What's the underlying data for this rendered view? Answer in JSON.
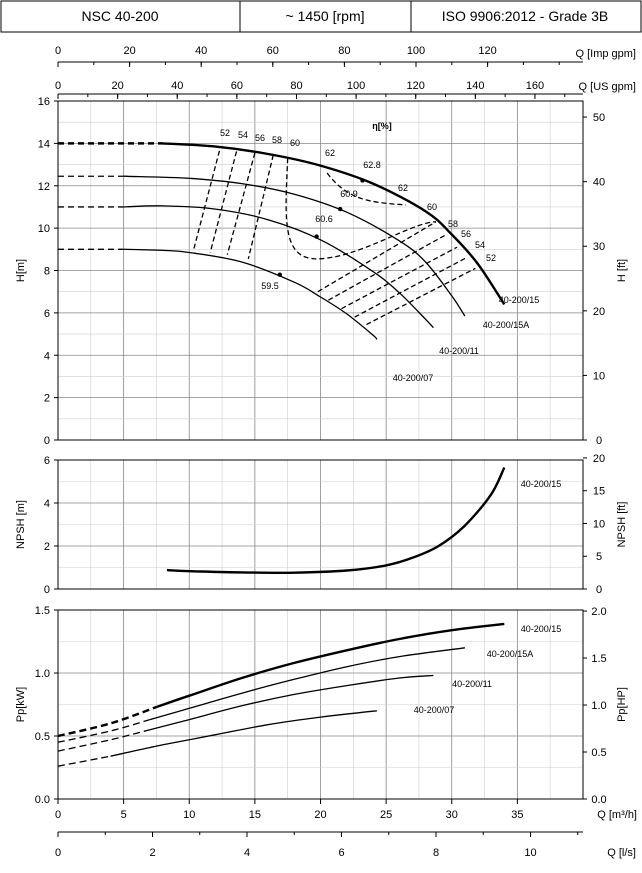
{
  "header": {
    "model": "NSC 40-200",
    "speed": "~ 1450 [rpm]",
    "standard": "ISO 9906:2012 - Grade 3B"
  },
  "chart_data": [
    {
      "type": "line",
      "panel": "head",
      "ylabel": "H[m]",
      "y2label": "H [ft]",
      "ylim": [
        0,
        16
      ],
      "y2lim": [
        0,
        52.49
      ],
      "yticks": [
        "0",
        "2",
        "4",
        "6",
        "8",
        "10",
        "12",
        "14",
        "16"
      ],
      "y2ticks": [
        "0",
        "10",
        "20",
        "30",
        "40",
        "50"
      ],
      "top_axis_imp": {
        "label": "Q [Imp gpm]",
        "ticks": [
          "0",
          "20",
          "40",
          "60",
          "80",
          "100",
          "120"
        ]
      },
      "top_axis_us": {
        "label": "Q [US gpm]",
        "ticks": [
          "0",
          "20",
          "40",
          "60",
          "80",
          "100",
          "120",
          "140",
          "160"
        ]
      },
      "efficiency_title": "η[%]",
      "series": [
        {
          "name": "40-200/15",
          "x": [
            8,
            12,
            16,
            20,
            24,
            28,
            30,
            32,
            34
          ],
          "y": [
            14.0,
            13.85,
            13.5,
            12.95,
            12.1,
            10.8,
            9.7,
            8.3,
            6.4
          ]
        },
        {
          "name": "40-200/15A",
          "x": [
            5,
            10,
            14,
            18,
            22,
            26,
            28,
            30,
            31
          ],
          "y": [
            12.45,
            12.35,
            12.1,
            11.6,
            10.75,
            9.4,
            8.4,
            6.8,
            5.85
          ]
        },
        {
          "name": "40-200/11",
          "x": [
            5,
            8,
            12,
            16,
            20,
            24,
            26,
            28,
            28.6
          ],
          "y": [
            11.0,
            11.05,
            10.9,
            10.4,
            9.45,
            7.95,
            6.95,
            5.7,
            5.3
          ]
        },
        {
          "name": "40-200/07",
          "x": [
            5,
            8,
            10,
            14,
            18,
            20,
            22,
            24,
            24.3
          ],
          "y": [
            9.0,
            8.95,
            8.85,
            8.4,
            7.45,
            6.75,
            5.95,
            4.95,
            4.75
          ]
        }
      ],
      "iso_labels": [
        "52",
        "54",
        "56",
        "58",
        "60",
        "62",
        "62.8",
        "62",
        "60.9",
        "60.6",
        "59.5",
        "60",
        "58",
        "56",
        "54",
        "52"
      ]
    },
    {
      "type": "line",
      "panel": "npsh",
      "ylabel": "NPSH [m]",
      "y2label": "NPSH [ft]",
      "ylim": [
        0,
        6
      ],
      "y2lim": [
        0,
        19.685
      ],
      "yticks": [
        "0",
        "2",
        "4",
        "6"
      ],
      "y2ticks": [
        "0",
        "5",
        "10",
        "15",
        "20"
      ],
      "series": [
        {
          "name": "40-200/15",
          "x": [
            8.3,
            10,
            14,
            18,
            22,
            25,
            27,
            29,
            31,
            33,
            34
          ],
          "y": [
            0.88,
            0.83,
            0.77,
            0.76,
            0.86,
            1.1,
            1.45,
            2.0,
            2.95,
            4.4,
            5.65
          ]
        }
      ]
    },
    {
      "type": "line",
      "panel": "power",
      "ylabel": "Pp[kW]",
      "y2label": "Pp[HP]",
      "ylim": [
        0,
        1.5
      ],
      "y2lim": [
        0,
        2.011
      ],
      "yticks": [
        "0.0",
        "0.5",
        "1.0",
        "1.5"
      ],
      "y2ticks": [
        "0.0",
        "0.5",
        "1.0",
        "1.5",
        "2.0"
      ],
      "xlabel": "Q [m³/h]",
      "xticks": [
        "0",
        "5",
        "10",
        "15",
        "20",
        "25",
        "30",
        "35"
      ],
      "bottom_axis_ls": {
        "label": "Q [l/s]",
        "ticks": [
          "0",
          "2",
          "4",
          "6",
          "8",
          "10"
        ]
      },
      "series": [
        {
          "name": "40-200/15",
          "x": [
            0,
            4,
            7.5,
            10,
            14,
            18,
            22,
            26,
            30,
            34
          ],
          "y": [
            0.5,
            0.6,
            0.73,
            0.82,
            0.96,
            1.08,
            1.18,
            1.27,
            1.34,
            1.39
          ]
        },
        {
          "name": "40-200/15A",
          "x": [
            0,
            4,
            7,
            10,
            14,
            18,
            22,
            26,
            31
          ],
          "y": [
            0.45,
            0.54,
            0.63,
            0.72,
            0.84,
            0.95,
            1.05,
            1.13,
            1.2
          ]
        },
        {
          "name": "40-200/11",
          "x": [
            0,
            4,
            7,
            10,
            14,
            18,
            22,
            26,
            28.6
          ],
          "y": [
            0.38,
            0.47,
            0.55,
            0.63,
            0.74,
            0.83,
            0.9,
            0.96,
            0.98
          ]
        },
        {
          "name": "40-200/07",
          "x": [
            0,
            4,
            8,
            12,
            16,
            20,
            24.3
          ],
          "y": [
            0.26,
            0.34,
            0.43,
            0.51,
            0.59,
            0.65,
            0.7
          ]
        }
      ]
    }
  ]
}
